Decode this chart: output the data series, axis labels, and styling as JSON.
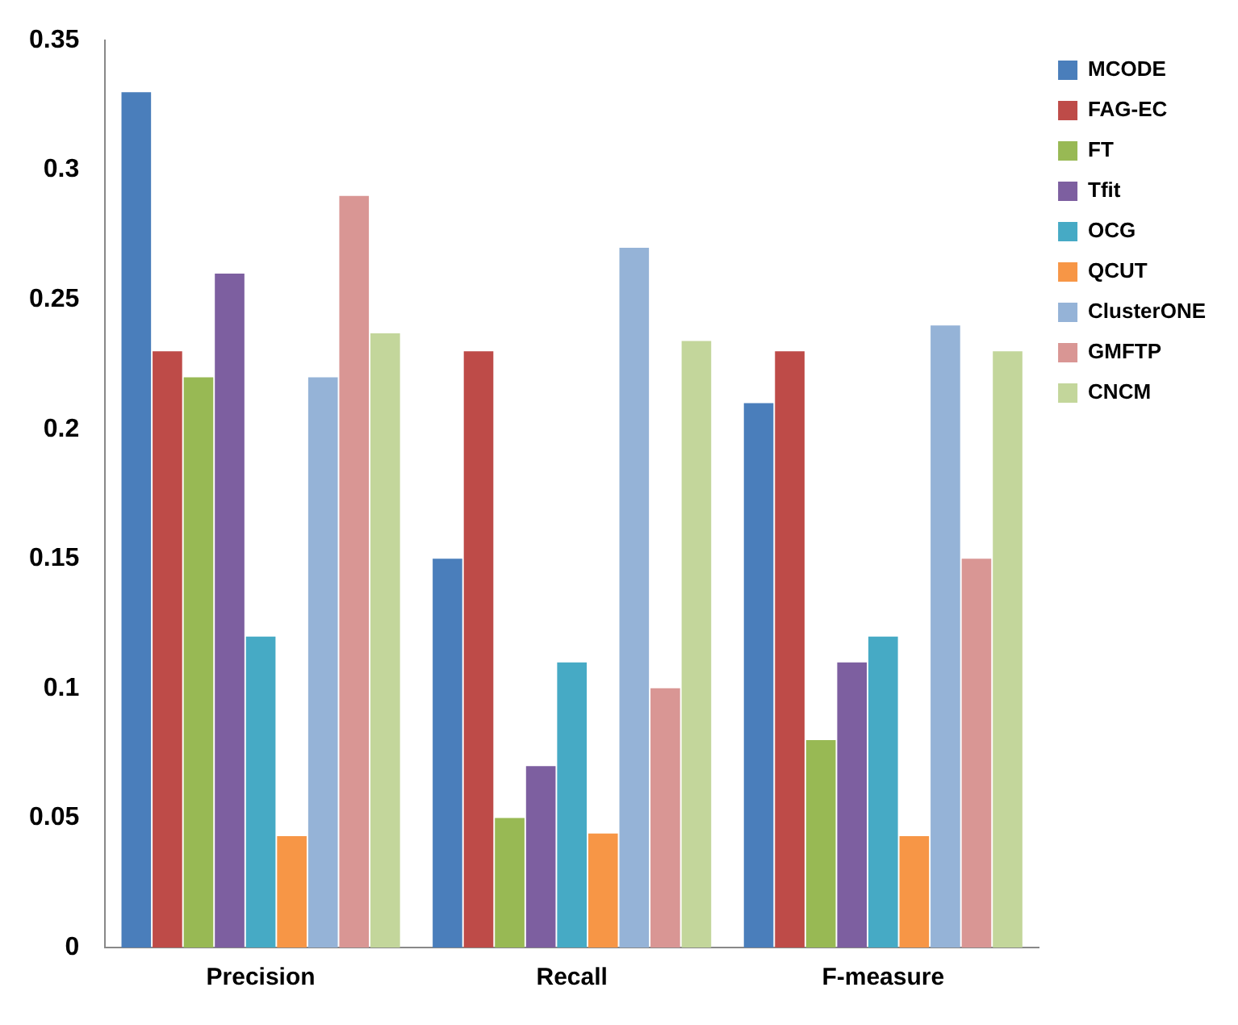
{
  "chart_data": {
    "type": "bar",
    "categories": [
      "Precision",
      "Recall",
      "F-measure"
    ],
    "series": [
      {
        "name": "MCODE",
        "color": "#4a7ebb",
        "values": [
          0.33,
          0.15,
          0.21
        ]
      },
      {
        "name": "FAG-EC",
        "color": "#be4b48",
        "values": [
          0.23,
          0.23,
          0.23
        ]
      },
      {
        "name": "FT",
        "color": "#98b954",
        "values": [
          0.22,
          0.05,
          0.08
        ]
      },
      {
        "name": "Tfit",
        "color": "#7d5fa0",
        "values": [
          0.26,
          0.07,
          0.11
        ]
      },
      {
        "name": "OCG",
        "color": "#46aac5",
        "values": [
          0.12,
          0.11,
          0.12
        ]
      },
      {
        "name": "QCUT",
        "color": "#f79646",
        "values": [
          0.043,
          0.044,
          0.043
        ]
      },
      {
        "name": "ClusterONE",
        "color": "#95b3d7",
        "values": [
          0.22,
          0.27,
          0.24
        ]
      },
      {
        "name": "GMFTP",
        "color": "#d99694",
        "values": [
          0.29,
          0.1,
          0.15
        ]
      },
      {
        "name": "CNCM",
        "color": "#c3d69b",
        "values": [
          0.237,
          0.234,
          0.23
        ]
      }
    ],
    "ylim": [
      0,
      0.35
    ],
    "yticks": [
      0,
      0.05,
      0.1,
      0.15,
      0.2,
      0.25,
      0.3,
      0.35
    ],
    "grid": false,
    "legend": "top right"
  }
}
